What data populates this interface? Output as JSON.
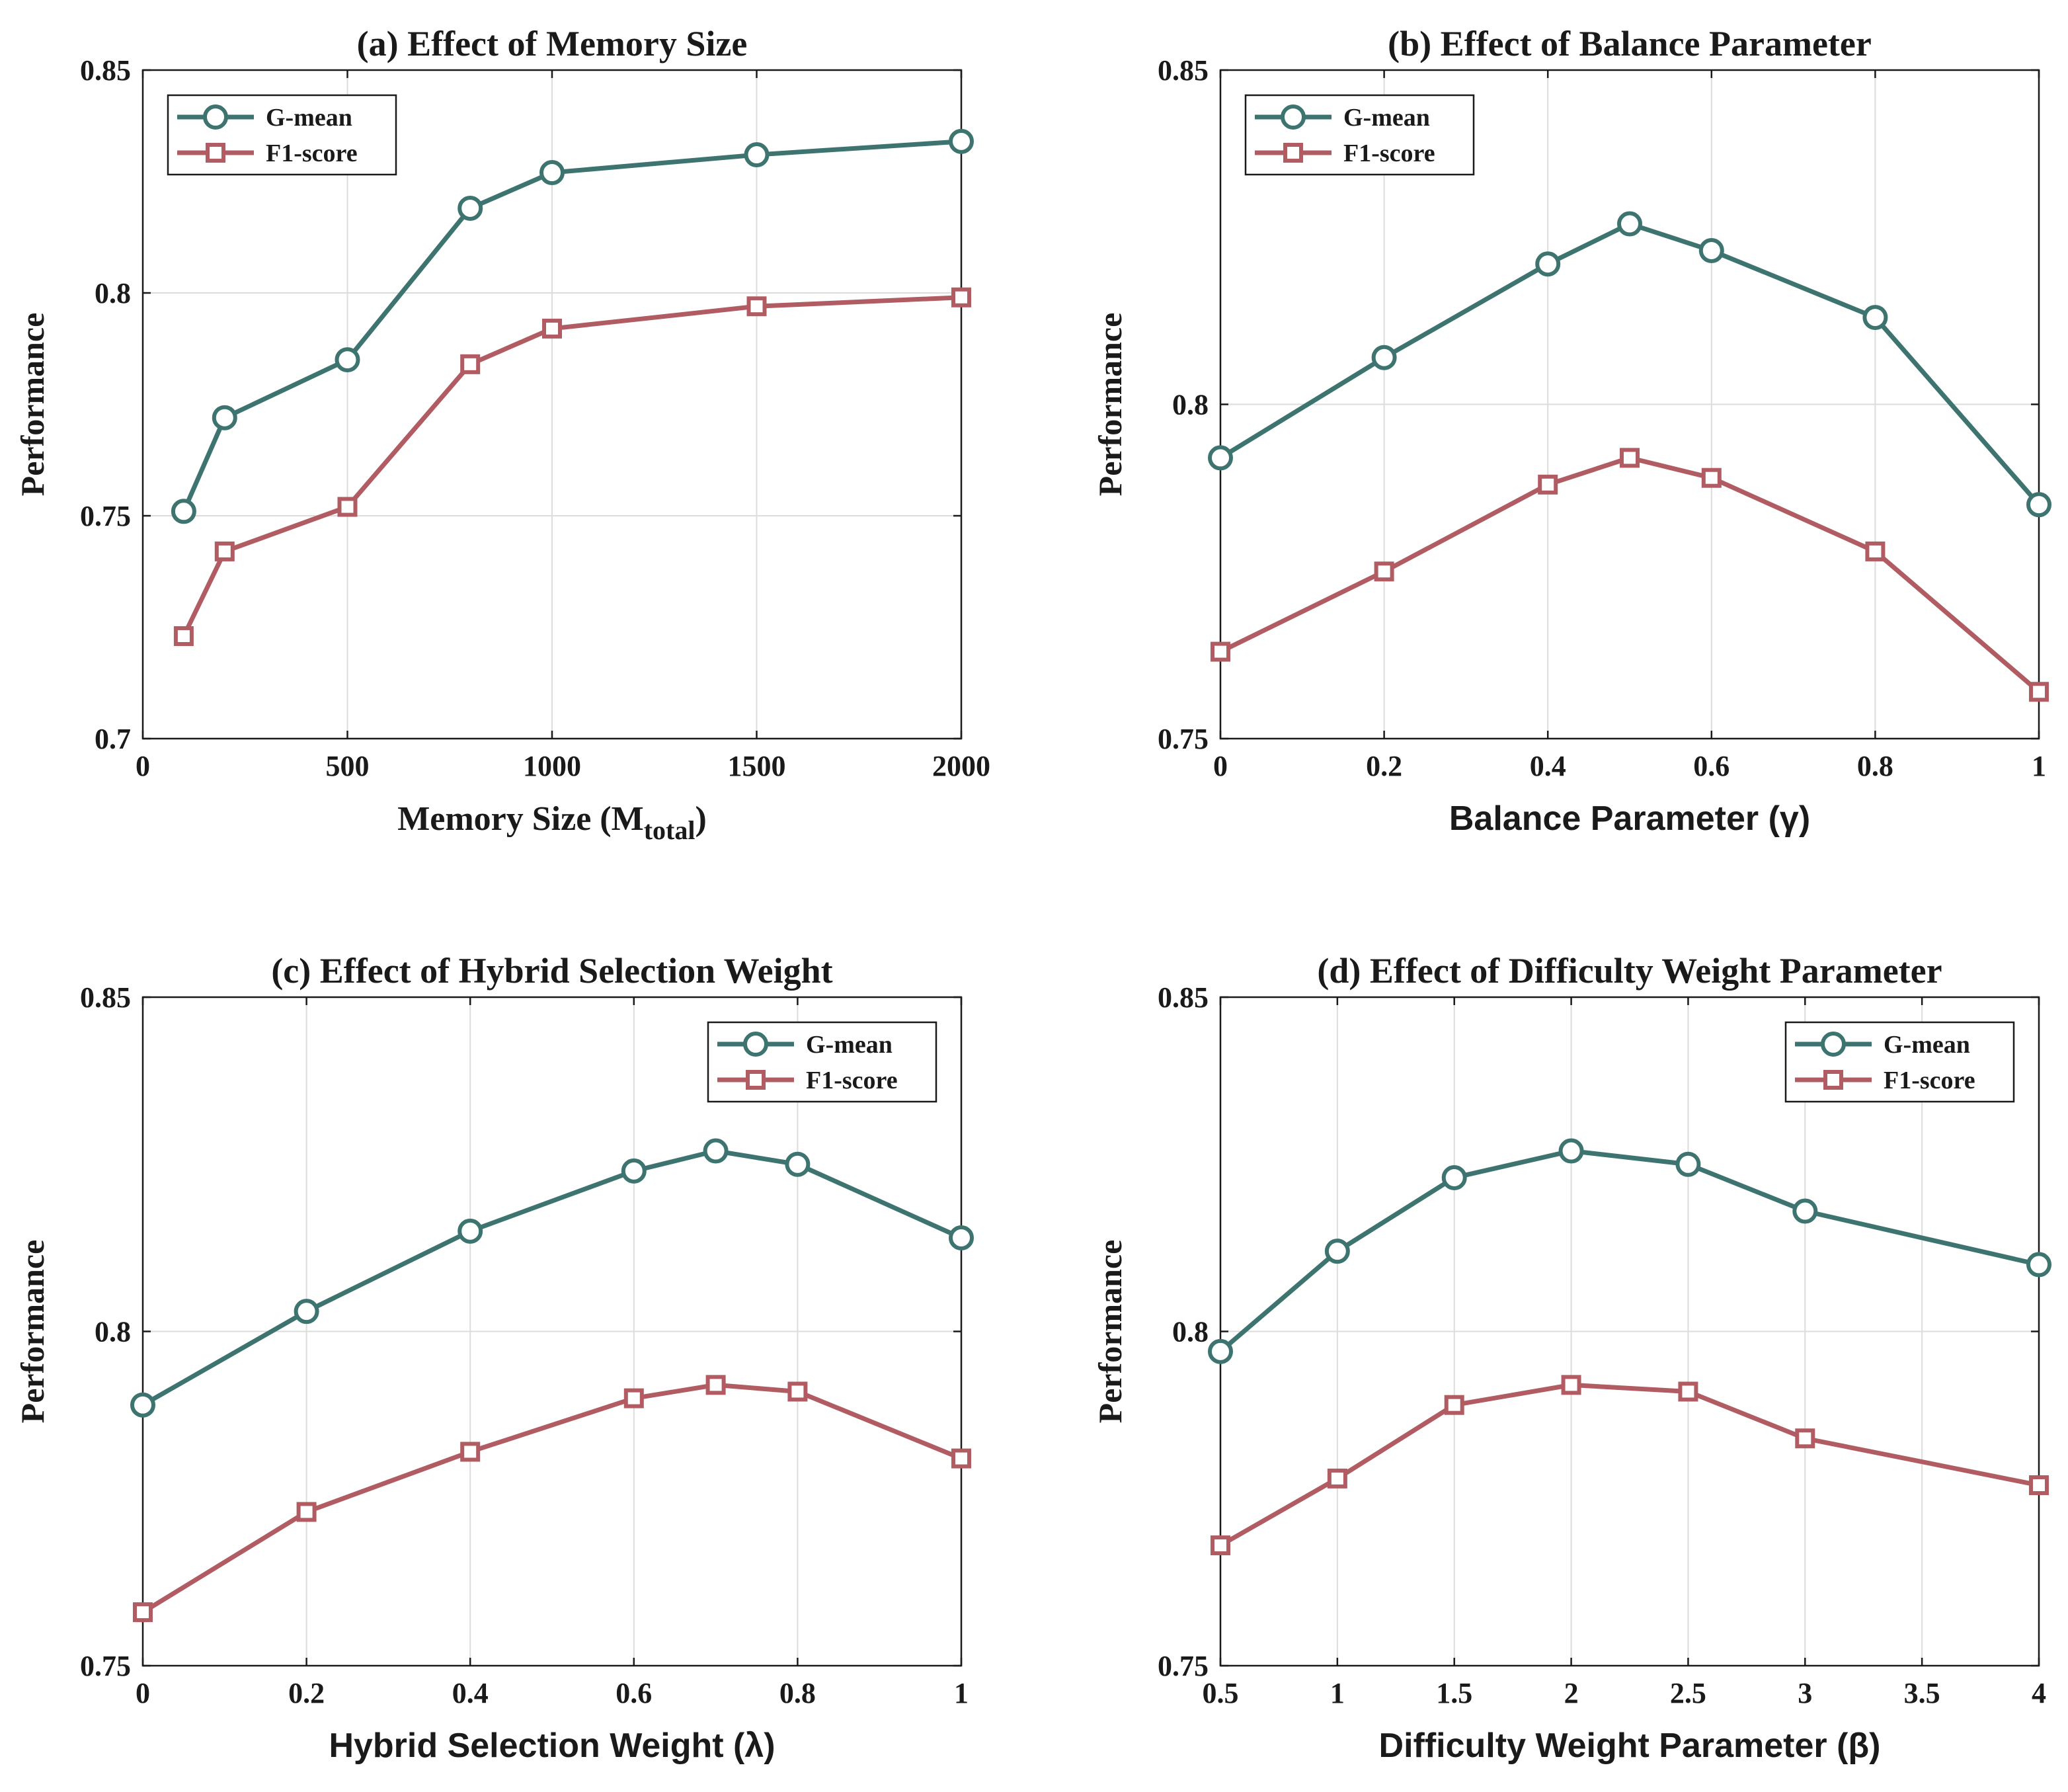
{
  "colors": {
    "gmean": "#3e7470",
    "f1": "#b05c62",
    "grid": "#dcdcdc",
    "axis": "#1a1a1a"
  },
  "chart_data": [
    {
      "type": "line",
      "title": "(a) Effect of Memory Size",
      "xlabel": "Memory Size (M",
      "xlabel_sub": "total",
      "xlabel_suffix": ")",
      "ylabel": "Performance",
      "xlim": [
        0,
        2000
      ],
      "ylim": [
        0.7,
        0.85
      ],
      "xticks": [
        0,
        500,
        1000,
        1500,
        2000
      ],
      "xtick_labels": [
        "0",
        "500",
        "1000",
        "1500",
        "2000"
      ],
      "yticks": [
        0.7,
        0.75,
        0.8,
        0.85
      ],
      "ytick_labels": [
        "0.7",
        "0.75",
        "0.8",
        "0.85"
      ],
      "grid": true,
      "legend_position": "top-left",
      "x": [
        100,
        200,
        500,
        800,
        1000,
        1500,
        2000
      ],
      "series": [
        {
          "name": "G-mean",
          "marker": "circle",
          "values": [
            0.751,
            0.772,
            0.785,
            0.819,
            0.827,
            0.831,
            0.834
          ]
        },
        {
          "name": "F1-score",
          "marker": "square",
          "values": [
            0.723,
            0.742,
            0.752,
            0.784,
            0.792,
            0.797,
            0.799
          ]
        }
      ]
    },
    {
      "type": "line",
      "title": "(b) Effect of Balance Parameter",
      "xlabel": "Balance Parameter (γ)",
      "ylabel": "Performance",
      "xlim": [
        0,
        1
      ],
      "ylim": [
        0.75,
        0.85
      ],
      "xticks": [
        0,
        0.2,
        0.4,
        0.6,
        0.8,
        1
      ],
      "xtick_labels": [
        "0",
        "0.2",
        "0.4",
        "0.6",
        "0.8",
        "1"
      ],
      "yticks": [
        0.75,
        0.8,
        0.85
      ],
      "ytick_labels": [
        "0.75",
        "0.8",
        "0.85"
      ],
      "grid": true,
      "legend_position": "top-left",
      "x": [
        0,
        0.2,
        0.4,
        0.5,
        0.6,
        0.8,
        1
      ],
      "series": [
        {
          "name": "G-mean",
          "marker": "circle",
          "values": [
            0.792,
            0.807,
            0.821,
            0.827,
            0.823,
            0.813,
            0.785
          ]
        },
        {
          "name": "F1-score",
          "marker": "square",
          "values": [
            0.763,
            0.775,
            0.788,
            0.792,
            0.789,
            0.778,
            0.757
          ]
        }
      ]
    },
    {
      "type": "line",
      "title": "(c) Effect of Hybrid Selection Weight",
      "xlabel": "Hybrid Selection Weight (λ)",
      "ylabel": "Performance",
      "xlim": [
        0,
        1
      ],
      "ylim": [
        0.75,
        0.85
      ],
      "xticks": [
        0,
        0.2,
        0.4,
        0.6,
        0.8,
        1
      ],
      "xtick_labels": [
        "0",
        "0.2",
        "0.4",
        "0.6",
        "0.8",
        "1"
      ],
      "yticks": [
        0.75,
        0.8,
        0.85
      ],
      "ytick_labels": [
        "0.75",
        "0.8",
        "0.85"
      ],
      "grid": true,
      "legend_position": "top-right",
      "x": [
        0,
        0.2,
        0.4,
        0.6,
        0.7,
        0.8,
        1
      ],
      "series": [
        {
          "name": "G-mean",
          "marker": "circle",
          "values": [
            0.789,
            0.803,
            0.815,
            0.824,
            0.827,
            0.825,
            0.814
          ]
        },
        {
          "name": "F1-score",
          "marker": "square",
          "values": [
            0.758,
            0.773,
            0.782,
            0.79,
            0.792,
            0.791,
            0.781
          ]
        }
      ]
    },
    {
      "type": "line",
      "title": "(d) Effect of Difficulty Weight Parameter",
      "xlabel": "Difficulty Weight Parameter (β)",
      "ylabel": "Performance",
      "xlim": [
        0.5,
        4
      ],
      "ylim": [
        0.75,
        0.85
      ],
      "xticks": [
        0.5,
        1,
        1.5,
        2,
        2.5,
        3,
        3.5,
        4
      ],
      "xtick_labels": [
        "0.5",
        "1",
        "1.5",
        "2",
        "2.5",
        "3",
        "3.5",
        "4"
      ],
      "yticks": [
        0.75,
        0.8,
        0.85
      ],
      "ytick_labels": [
        "0.75",
        "0.8",
        "0.85"
      ],
      "grid": true,
      "legend_position": "top-right",
      "x": [
        0.5,
        1,
        1.5,
        2,
        2.5,
        3,
        4
      ],
      "series": [
        {
          "name": "G-mean",
          "marker": "circle",
          "values": [
            0.797,
            0.812,
            0.823,
            0.827,
            0.825,
            0.818,
            0.81
          ]
        },
        {
          "name": "F1-score",
          "marker": "square",
          "values": [
            0.768,
            0.778,
            0.789,
            0.792,
            0.791,
            0.784,
            0.777
          ]
        }
      ]
    }
  ]
}
